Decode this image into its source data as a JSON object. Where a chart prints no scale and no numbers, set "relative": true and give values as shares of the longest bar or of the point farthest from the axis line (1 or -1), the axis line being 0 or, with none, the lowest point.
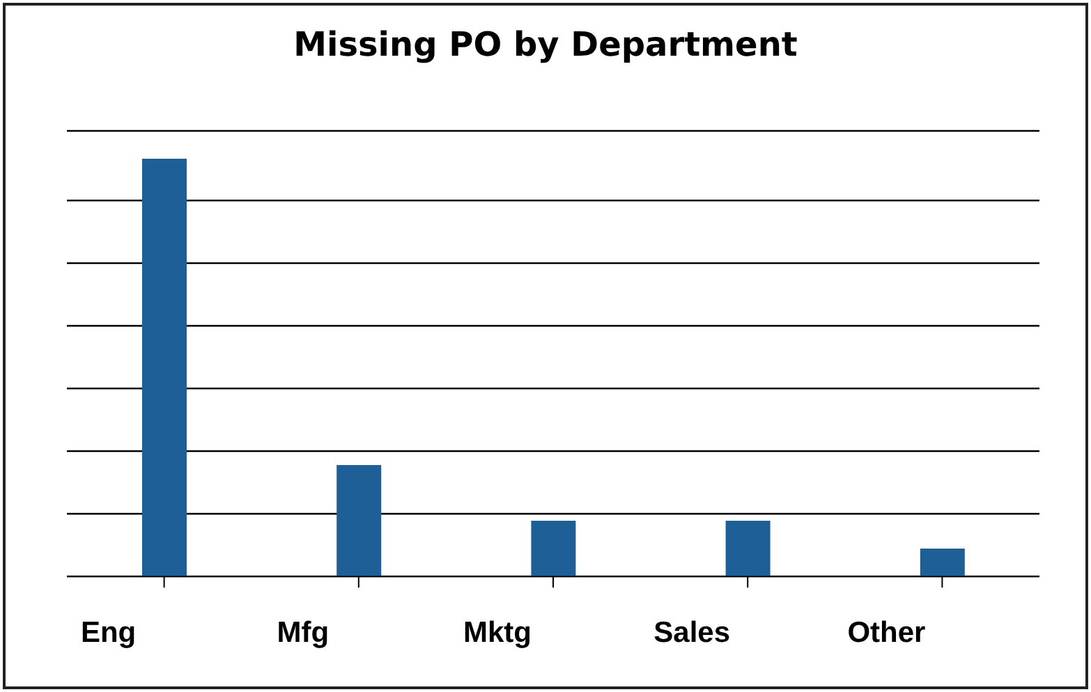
{
  "chart_data": {
    "type": "bar",
    "title": "Missing PO by Department",
    "categories": [
      "Eng",
      "Mfg",
      "Mktg",
      "Sales",
      "Other"
    ],
    "values": [
      1,
      0.2667,
      0.1333,
      0.1333,
      0.0667
    ],
    "color": "#1f5f97",
    "relative": true,
    "grid": "y",
    "legend": false
  }
}
